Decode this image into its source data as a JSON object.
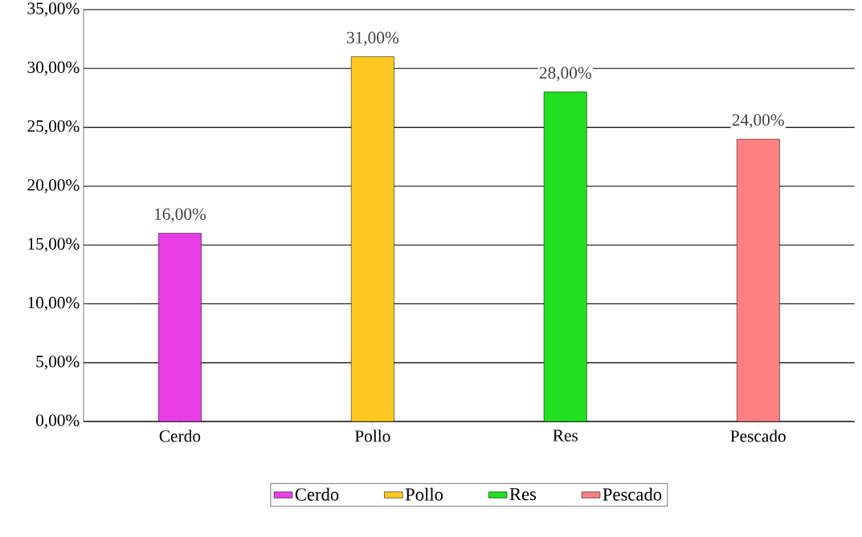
{
  "chart_data": {
    "type": "bar",
    "categories": [
      "Cerdo",
      "Pollo",
      "Res",
      "Pescado"
    ],
    "series": [
      {
        "name": "Cerdo",
        "color": "#e83ee8",
        "values": [
          16,
          null,
          null,
          null
        ],
        "value_labels": [
          "16,00%",
          null,
          null,
          null
        ]
      },
      {
        "name": "Pollo",
        "color": "#ffc820",
        "values": [
          null,
          31,
          null,
          null
        ],
        "value_labels": [
          null,
          "31,00%",
          null,
          null
        ]
      },
      {
        "name": "Res",
        "color": "#20e020",
        "values": [
          null,
          null,
          28,
          null
        ],
        "value_labels": [
          null,
          null,
          "28,00%",
          null
        ]
      },
      {
        "name": "Pescado",
        "color": "#ff8080",
        "values": [
          null,
          null,
          null,
          24
        ],
        "value_labels": [
          null,
          null,
          null,
          "24,00%"
        ]
      }
    ],
    "ylim": [
      0,
      35
    ],
    "yticks": [
      {
        "value": 0,
        "label": "0,00%"
      },
      {
        "value": 5,
        "label": "5,00%"
      },
      {
        "value": 10,
        "label": "10,00%"
      },
      {
        "value": 15,
        "label": "15,00%"
      },
      {
        "value": 20,
        "label": "20,00%"
      },
      {
        "value": 25,
        "label": "25,00%"
      },
      {
        "value": 30,
        "label": "30,00%"
      },
      {
        "value": 35,
        "label": "35,00%"
      }
    ],
    "grid": "y",
    "legend": "bottom"
  }
}
